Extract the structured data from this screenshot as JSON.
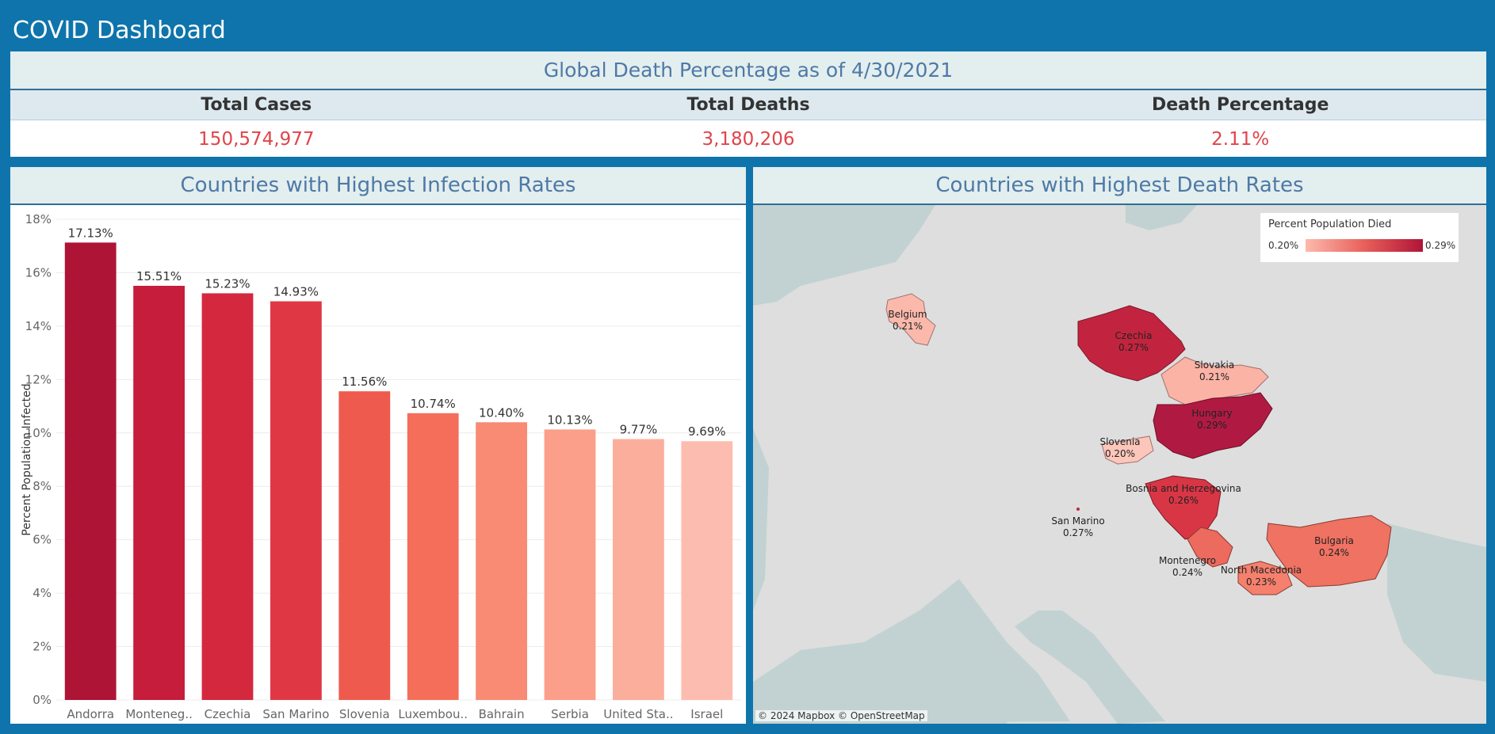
{
  "dashboard": {
    "title": "COVID Dashboard"
  },
  "kpi": {
    "header": "Global Death Percentage as of 4/30/2021",
    "columns": [
      {
        "label": "Total Cases",
        "value": "150,574,977"
      },
      {
        "label": "Total Deaths",
        "value": "3,180,206"
      },
      {
        "label": "Death Percentage",
        "value": "2.11%"
      }
    ],
    "value_color": "#e0444a"
  },
  "infection_panel": {
    "title": "Countries with Highest Infection Rates"
  },
  "death_panel": {
    "title": "Countries with Highest Death Rates",
    "legend": {
      "title": "Percent Population Died",
      "min_label": "0.20%",
      "max_label": "0.29%"
    },
    "attribution": "© 2024 Mapbox © OpenStreetMap",
    "regions": [
      {
        "name": "Belgium",
        "value": "0.21%",
        "color": "#fbb9ac"
      },
      {
        "name": "Czechia",
        "value": "0.27%",
        "color": "#c2243f"
      },
      {
        "name": "Slovakia",
        "value": "0.21%",
        "color": "#fbb3a5"
      },
      {
        "name": "Hungary",
        "value": "0.29%",
        "color": "#b01a42"
      },
      {
        "name": "Slovenia",
        "value": "0.20%",
        "color": "#fcc6ba"
      },
      {
        "name": "Bosnia and Herzegovina",
        "value": "0.26%",
        "color": "#d83645"
      },
      {
        "name": "San Marino",
        "value": "0.27%",
        "color": "#c2243f"
      },
      {
        "name": "Montenegro",
        "value": "0.24%",
        "color": "#ec6a5e"
      },
      {
        "name": "North Macedonia",
        "value": "0.23%",
        "color": "#f4806d"
      },
      {
        "name": "Bulgaria",
        "value": "0.24%",
        "color": "#ef7262"
      }
    ]
  },
  "chart_data": {
    "type": "bar",
    "categories": [
      "Andorra",
      "Monteneg..",
      "Czechia",
      "San Marino",
      "Slovenia",
      "Luxembou..",
      "Bahrain",
      "Serbia",
      "United Sta..",
      "Israel"
    ],
    "values": [
      17.13,
      15.51,
      15.23,
      14.93,
      11.56,
      10.74,
      10.4,
      10.13,
      9.77,
      9.69
    ],
    "data_labels": [
      "17.13%",
      "15.51%",
      "15.23%",
      "14.93%",
      "11.56%",
      "10.74%",
      "10.40%",
      "10.13%",
      "9.77%",
      "9.69%"
    ],
    "colors": [
      "#ae1436",
      "#c51d3b",
      "#d4283f",
      "#df3844",
      "#ef5a4e",
      "#f46e5a",
      "#f98a74",
      "#fb9f8a",
      "#fcae9d",
      "#fcbdb0"
    ],
    "ylabel": "Percent Population Infected",
    "ylim": [
      0,
      18
    ],
    "yticks": [
      0,
      2,
      4,
      6,
      8,
      10,
      12,
      14,
      16,
      18
    ],
    "ytick_labels": [
      "0%",
      "2%",
      "4%",
      "6%",
      "8%",
      "10%",
      "12%",
      "14%",
      "16%",
      "18%"
    ],
    "grid": true
  }
}
